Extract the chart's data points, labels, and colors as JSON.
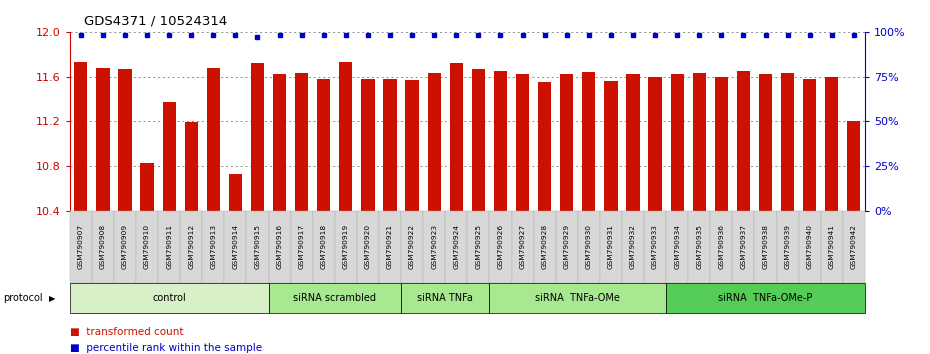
{
  "title": "GDS4371 / 10524314",
  "samples": [
    "GSM790907",
    "GSM790908",
    "GSM790909",
    "GSM790910",
    "GSM790911",
    "GSM790912",
    "GSM790913",
    "GSM790914",
    "GSM790915",
    "GSM790916",
    "GSM790917",
    "GSM790918",
    "GSM790919",
    "GSM790920",
    "GSM790921",
    "GSM790922",
    "GSM790923",
    "GSM790924",
    "GSM790925",
    "GSM790926",
    "GSM790927",
    "GSM790928",
    "GSM790929",
    "GSM790930",
    "GSM790931",
    "GSM790932",
    "GSM790933",
    "GSM790934",
    "GSM790935",
    "GSM790936",
    "GSM790937",
    "GSM790938",
    "GSM790939",
    "GSM790940",
    "GSM790941",
    "GSM790942"
  ],
  "bar_values": [
    11.73,
    11.68,
    11.67,
    10.83,
    11.37,
    11.19,
    11.68,
    10.73,
    11.72,
    11.62,
    11.63,
    11.58,
    11.73,
    11.58,
    11.58,
    11.57,
    11.63,
    11.72,
    11.67,
    11.65,
    11.62,
    11.55,
    11.62,
    11.64,
    11.56,
    11.62,
    11.6,
    11.62,
    11.63,
    11.6,
    11.65,
    11.62,
    11.63,
    11.58,
    11.6,
    11.2
  ],
  "percentile_values": [
    98,
    98,
    98,
    98,
    98,
    98,
    98,
    98,
    97,
    98,
    98,
    98,
    98,
    98,
    98,
    98,
    98,
    98,
    98,
    98,
    98,
    98,
    98,
    98,
    98,
    98,
    98,
    98,
    98,
    98,
    98,
    98,
    98,
    98,
    98,
    98
  ],
  "groups": [
    {
      "label": "control",
      "start": 0,
      "end": 9,
      "color": "#d8f0c8"
    },
    {
      "label": "siRNA scrambled",
      "start": 9,
      "end": 15,
      "color": "#a8e890"
    },
    {
      "label": "siRNA TNFa",
      "start": 15,
      "end": 19,
      "color": "#a8e890"
    },
    {
      "label": "siRNA  TNFa-OMe",
      "start": 19,
      "end": 27,
      "color": "#a8e890"
    },
    {
      "label": "siRNA  TNFa-OMe-P",
      "start": 27,
      "end": 36,
      "color": "#55cc55"
    }
  ],
  "ylim": [
    10.4,
    12.0
  ],
  "yticks": [
    10.4,
    10.8,
    11.2,
    11.6,
    12.0
  ],
  "right_yticks": [
    0,
    25,
    50,
    75,
    100
  ],
  "bar_color": "#cc1100",
  "dot_color": "#0000cc",
  "grid_color": "#666666",
  "tick_label_color": "#cc0000",
  "right_tick_color": "#0000cc"
}
